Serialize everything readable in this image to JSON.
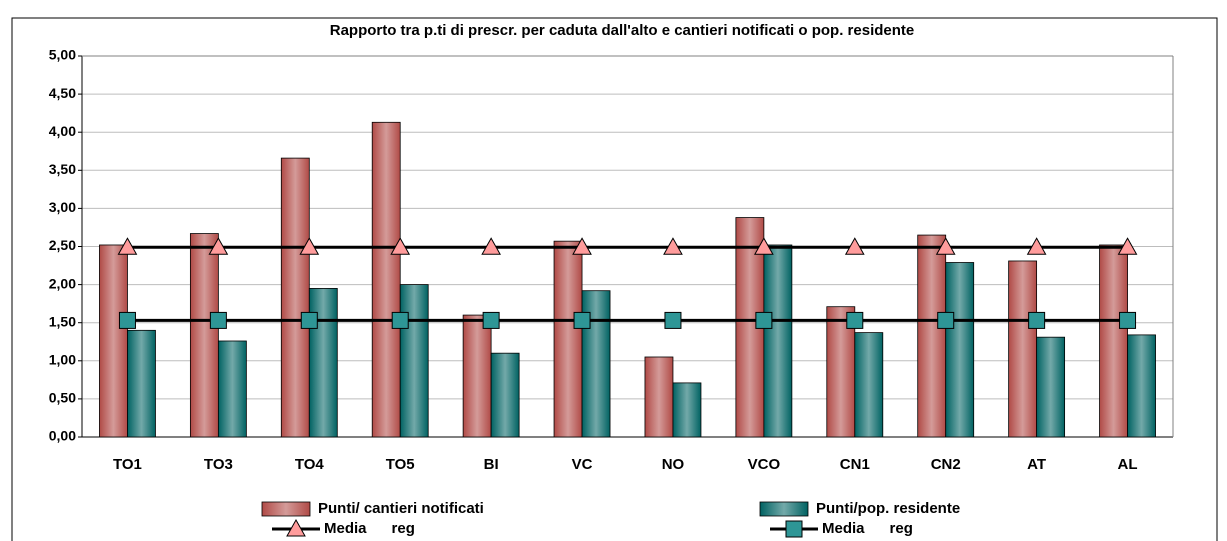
{
  "chart_data": {
    "type": "bar",
    "title": "Rapporto tra p.ti di prescr. per caduta dall'alto e cantieri notificati o pop. residente",
    "categories": [
      "TO1",
      "TO3",
      "TO4",
      "TO5",
      "BI",
      "VC",
      "NO",
      "VCO",
      "CN1",
      "CN2",
      "AT",
      "AL"
    ],
    "series": [
      {
        "name": "Punti/ cantieri notificati",
        "type": "bar",
        "color": "#b04a46",
        "values": [
          2.52,
          2.67,
          3.66,
          4.13,
          1.6,
          2.57,
          1.05,
          2.88,
          1.71,
          2.65,
          2.31,
          2.52
        ]
      },
      {
        "name": "Punti/pop. residente",
        "type": "bar",
        "color": "#006262",
        "values": [
          1.4,
          1.26,
          1.95,
          2.0,
          1.1,
          1.92,
          0.71,
          2.52,
          1.37,
          2.29,
          1.31,
          1.34
        ]
      },
      {
        "name": "Media      reg",
        "type": "line",
        "marker": "triangle",
        "color": "#ff9c9c",
        "values": [
          2.49,
          2.49,
          2.49,
          2.49,
          2.49,
          2.49,
          2.49,
          2.49,
          2.49,
          2.49,
          2.49,
          2.49
        ]
      },
      {
        "name": "Media      reg",
        "type": "line",
        "marker": "square",
        "color": "#2e9696",
        "values": [
          1.53,
          1.53,
          1.53,
          1.53,
          1.53,
          1.53,
          1.53,
          1.53,
          1.53,
          1.53,
          1.53,
          1.53
        ]
      }
    ],
    "ylim": [
      0,
      5
    ],
    "yticks": [
      {
        "value": 0,
        "label": "0,00"
      },
      {
        "value": 0.5,
        "label": "0,50"
      },
      {
        "value": 1,
        "label": "1,00"
      },
      {
        "value": 1.5,
        "label": "1,50"
      },
      {
        "value": 2,
        "label": "2,00"
      },
      {
        "value": 2.5,
        "label": "2,50"
      },
      {
        "value": 3,
        "label": "3,00"
      },
      {
        "value": 3.5,
        "label": "3,50"
      },
      {
        "value": 4,
        "label": "4,00"
      },
      {
        "value": 4.5,
        "label": "4,50"
      },
      {
        "value": 5,
        "label": "5,00"
      }
    ],
    "grid": true,
    "legend": "bottom"
  }
}
